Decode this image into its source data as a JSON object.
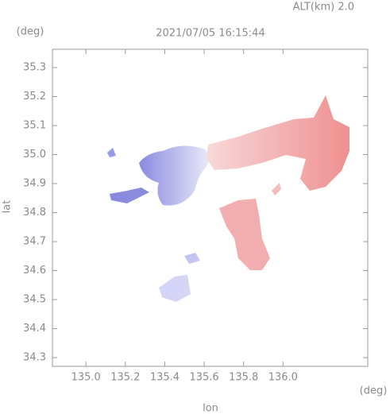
{
  "header": {
    "altitude": "ALT(km) 2.0"
  },
  "chart_data": {
    "type": "map",
    "title": "2021/07/05 16:15:44",
    "x_label": "lon",
    "y_label": "lat",
    "x_unit": "(deg)",
    "y_unit": "(deg)",
    "xlim": [
      134.83,
      136.43
    ],
    "ylim": [
      34.27,
      35.363
    ],
    "xticks": [
      {
        "value": 135,
        "label": "135.0"
      },
      135.2,
      135.4,
      135.6,
      135.8,
      {
        "value": 136,
        "label": "136.0"
      }
    ],
    "yticks": [
      34.3,
      34.4,
      34.5,
      34.6,
      34.7,
      34.8,
      34.9,
      {
        "value": 35,
        "label": "35.0"
      },
      35.1,
      35.2,
      35.3
    ]
  }
}
